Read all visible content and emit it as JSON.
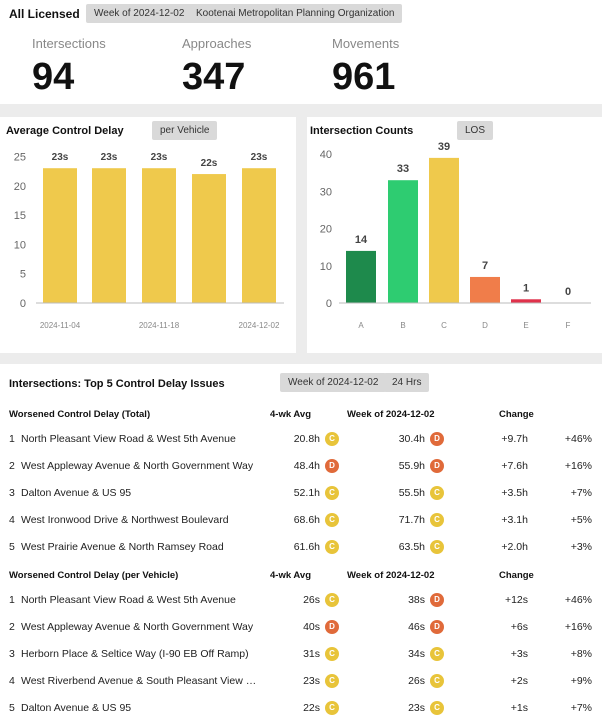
{
  "header": {
    "title": "All Licensed",
    "week_chip": "Week of 2024-12-02",
    "org_chip": "Kootenai Metropolitan Planning Organization"
  },
  "kpis": [
    {
      "label": "Intersections",
      "value": "94"
    },
    {
      "label": "Approaches",
      "value": "347"
    },
    {
      "label": "Movements",
      "value": "961"
    }
  ],
  "delay_panel": {
    "title": "Average Control Delay",
    "chip": "per Vehicle"
  },
  "counts_panel": {
    "title": "Intersection Counts",
    "chip": "LOS"
  },
  "colors": {
    "bar_yellow": "#efc94c",
    "los_A": "#1e8a4c",
    "los_B": "#2ecc71",
    "los_C": "#efc94c",
    "los_D": "#f07d4a",
    "los_E": "#e0314b",
    "los_F": "#999999",
    "badge_C": "#e8c43a",
    "badge_D": "#e06a3a"
  },
  "chart_data": [
    {
      "type": "bar",
      "title": "Average Control Delay",
      "categories": [
        "",
        "",
        "",
        "",
        ""
      ],
      "x_tick_labels": [
        "2024-11-04",
        "2024-11-18",
        "2024-12-02"
      ],
      "values": [
        23,
        23,
        23,
        22,
        23
      ],
      "data_labels": [
        "23s",
        "23s",
        "23s",
        "22s",
        "23s"
      ],
      "ylim": [
        0,
        27.3
      ],
      "yticks": [
        0,
        5,
        10,
        15,
        20,
        25
      ],
      "grid": false
    },
    {
      "type": "bar",
      "title": "Intersection Counts",
      "categories": [
        "A",
        "B",
        "C",
        "D",
        "E",
        "F"
      ],
      "values": [
        14,
        33,
        39,
        7,
        1,
        0
      ],
      "ylim": [
        0,
        43
      ],
      "yticks": [
        0,
        10,
        20,
        30,
        40
      ],
      "grid": false
    }
  ],
  "issues": {
    "title": "Intersections: Top 5 Control Delay Issues",
    "week_chip": "Week of 2024-12-02",
    "hours_chip": "24 Hrs",
    "sections": [
      {
        "header": {
          "name": "Worsened Control Delay (Total)",
          "avg": "4-wk Avg",
          "week": "Week of 2024-12-02",
          "change": "Change"
        },
        "rows": [
          {
            "rank": "1",
            "name": "North Pleasant View Road & West 5th Avenue",
            "avg": "20.8h",
            "avg_los": "C",
            "week": "30.4h",
            "week_los": "D",
            "change": "+9.7h",
            "pct": "+46%"
          },
          {
            "rank": "2",
            "name": "West Appleway Avenue & North Government Way",
            "avg": "48.4h",
            "avg_los": "D",
            "week": "55.9h",
            "week_los": "D",
            "change": "+7.6h",
            "pct": "+16%"
          },
          {
            "rank": "3",
            "name": "Dalton Avenue & US 95",
            "avg": "52.1h",
            "avg_los": "C",
            "week": "55.5h",
            "week_los": "C",
            "change": "+3.5h",
            "pct": "+7%"
          },
          {
            "rank": "4",
            "name": "West Ironwood Drive & Northwest Boulevard",
            "avg": "68.6h",
            "avg_los": "C",
            "week": "71.7h",
            "week_los": "C",
            "change": "+3.1h",
            "pct": "+5%"
          },
          {
            "rank": "5",
            "name": "West Prairie Avenue & North Ramsey Road",
            "avg": "61.6h",
            "avg_los": "C",
            "week": "63.5h",
            "week_los": "C",
            "change": "+2.0h",
            "pct": "+3%"
          }
        ]
      },
      {
        "header": {
          "name": "Worsened Control Delay (per Vehicle)",
          "avg": "4-wk Avg",
          "week": "Week of 2024-12-02",
          "change": "Change"
        },
        "rows": [
          {
            "rank": "1",
            "name": "North Pleasant View Road & West 5th Avenue",
            "avg": "26s",
            "avg_los": "C",
            "week": "38s",
            "week_los": "D",
            "change": "+12s",
            "pct": "+46%"
          },
          {
            "rank": "2",
            "name": "West Appleway Avenue & North Government Way",
            "avg": "40s",
            "avg_los": "D",
            "week": "46s",
            "week_los": "D",
            "change": "+6s",
            "pct": "+16%"
          },
          {
            "rank": "3",
            "name": "Herborn Place & Seltice Way (I-90 EB Off Ramp)",
            "avg": "31s",
            "avg_los": "C",
            "week": "34s",
            "week_los": "C",
            "change": "+3s",
            "pct": "+8%"
          },
          {
            "rank": "4",
            "name": "West Riverbend Avenue & South Pleasant View Road",
            "avg": "23s",
            "avg_los": "C",
            "week": "26s",
            "week_los": "C",
            "change": "+2s",
            "pct": "+9%"
          },
          {
            "rank": "5",
            "name": "Dalton Avenue & US 95",
            "avg": "22s",
            "avg_los": "C",
            "week": "23s",
            "week_los": "C",
            "change": "+1s",
            "pct": "+7%"
          }
        ]
      }
    ]
  }
}
